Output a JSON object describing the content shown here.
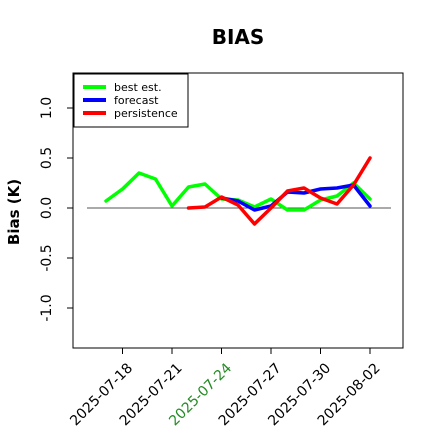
{
  "chart_data": {
    "type": "line",
    "title": "BIAS",
    "xlabel": "",
    "ylabel": "Bias (K)",
    "x_ticks": [
      "2025-07-18",
      "2025-07-21",
      "2025-07-24",
      "2025-07-27",
      "2025-07-30",
      "2025-08-02"
    ],
    "highlighted_tick": "2025-07-24",
    "highlight_color": "#228b22",
    "y_ticks": [
      "-1.0",
      "-0.5",
      "0.0",
      "0.5",
      "1.0"
    ],
    "xlim": [
      "2025-07-15",
      "2025-08-04"
    ],
    "ylim": [
      -1.4,
      1.35
    ],
    "zero_line": 0.0,
    "legend_position": "top-left",
    "series": [
      {
        "name": "best est.",
        "color": "#00ff00",
        "points": [
          [
            "2025-07-17",
            0.07
          ],
          [
            "2025-07-18",
            0.19
          ],
          [
            "2025-07-19",
            0.35
          ],
          [
            "2025-07-20",
            0.29
          ],
          [
            "2025-07-21",
            0.02
          ],
          [
            "2025-07-22",
            0.21
          ],
          [
            "2025-07-23",
            0.24
          ],
          [
            "2025-07-24",
            0.09
          ],
          [
            "2025-07-25",
            0.08
          ],
          [
            "2025-07-26",
            0.01
          ],
          [
            "2025-07-27",
            0.09
          ],
          [
            "2025-07-28",
            -0.02
          ],
          [
            "2025-07-29",
            -0.02
          ],
          [
            "2025-07-30",
            0.08
          ],
          [
            "2025-07-31",
            0.12
          ],
          [
            "2025-08-01",
            0.25
          ],
          [
            "2025-08-02",
            0.09
          ]
        ]
      },
      {
        "name": "forecast",
        "color": "#0000ff",
        "points": [
          [
            "2025-07-24",
            0.1
          ],
          [
            "2025-07-25",
            0.07
          ],
          [
            "2025-07-26",
            -0.02
          ],
          [
            "2025-07-27",
            0.02
          ],
          [
            "2025-07-28",
            0.16
          ],
          [
            "2025-07-29",
            0.15
          ],
          [
            "2025-07-30",
            0.19
          ],
          [
            "2025-07-31",
            0.2
          ],
          [
            "2025-08-01",
            0.23
          ],
          [
            "2025-08-02",
            0.02
          ]
        ]
      },
      {
        "name": "persistence",
        "color": "#ff0000",
        "points": [
          [
            "2025-07-22",
            0.0
          ],
          [
            "2025-07-23",
            0.01
          ],
          [
            "2025-07-24",
            0.11
          ],
          [
            "2025-07-25",
            0.03
          ],
          [
            "2025-07-26",
            -0.16
          ],
          [
            "2025-07-27",
            0.0
          ],
          [
            "2025-07-28",
            0.17
          ],
          [
            "2025-07-29",
            0.2
          ],
          [
            "2025-07-30",
            0.1
          ],
          [
            "2025-07-31",
            0.04
          ],
          [
            "2025-08-01",
            0.23
          ],
          [
            "2025-08-02",
            0.5
          ]
        ]
      }
    ]
  }
}
